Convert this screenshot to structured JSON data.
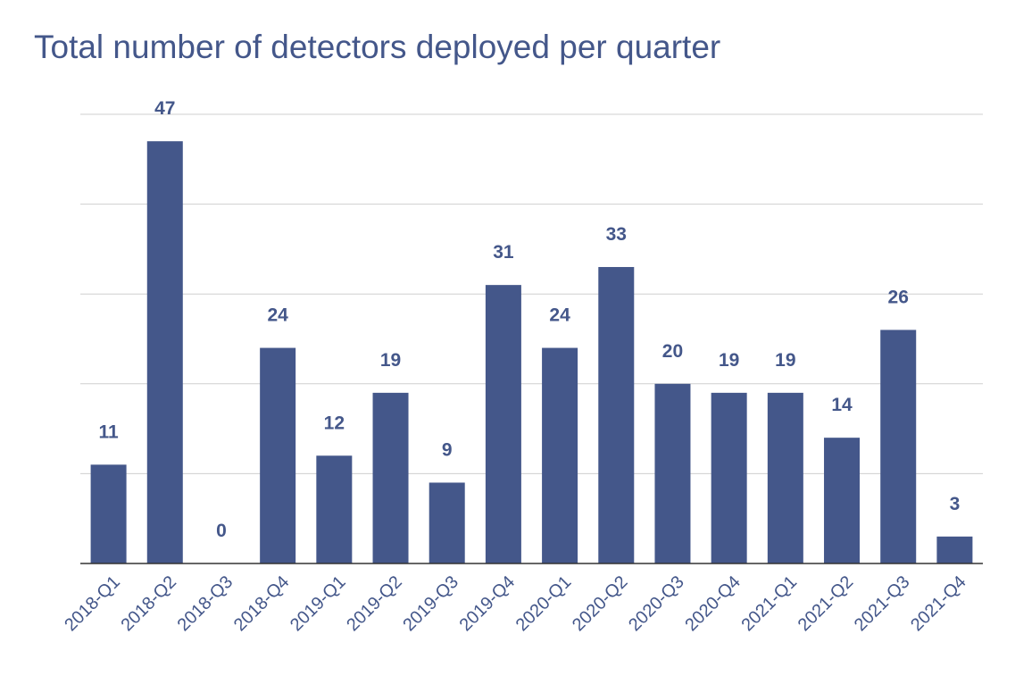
{
  "chart_data": {
    "type": "bar",
    "title": "Total number of detectors deployed per quarter",
    "xlabel": "",
    "ylabel": "",
    "categories": [
      "2018-Q1",
      "2018-Q2",
      "2018-Q3",
      "2018-Q4",
      "2019-Q1",
      "2019-Q2",
      "2019-Q3",
      "2019-Q4",
      "2020-Q1",
      "2020-Q2",
      "2020-Q3",
      "2020-Q4",
      "2021-Q1",
      "2021-Q2",
      "2021-Q3",
      "2021-Q4"
    ],
    "values": [
      11,
      47,
      0,
      24,
      12,
      19,
      9,
      31,
      24,
      33,
      20,
      19,
      19,
      14,
      26,
      3
    ],
    "ylim": [
      0,
      50
    ],
    "grid": true,
    "show_y_tick_labels": false,
    "show_data_labels": true,
    "legend": "none",
    "bar_color": "#44578a",
    "text_color": "#44578a",
    "grid_color": "#cfcfcf"
  }
}
